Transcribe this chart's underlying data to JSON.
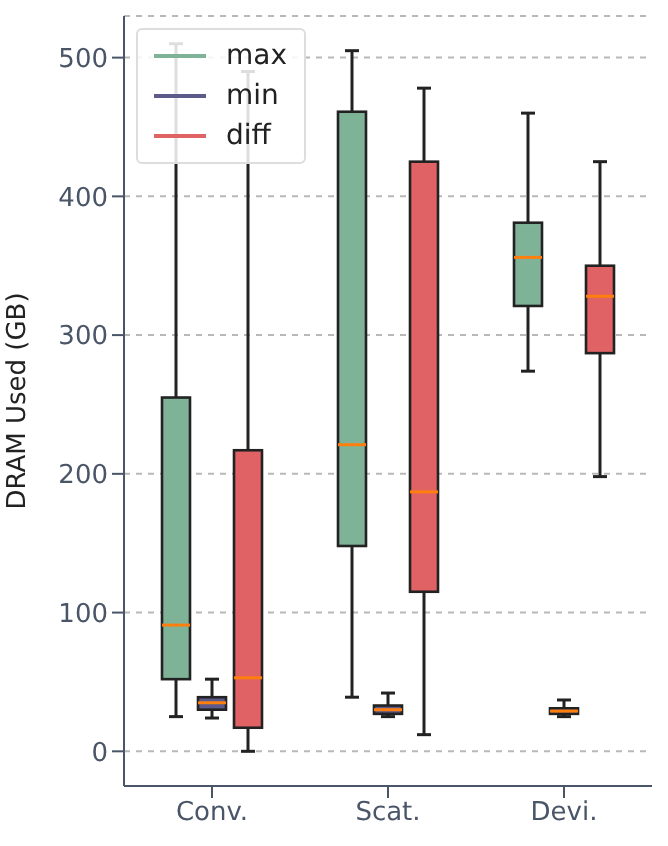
{
  "chart_data": {
    "type": "box",
    "ylabel": "DRAM Used (GB)",
    "categories": [
      "Conv.",
      "Scat.",
      "Devi."
    ],
    "ylim": [
      -25,
      530
    ],
    "yticks": [
      0,
      100,
      200,
      300,
      400,
      500
    ],
    "grid": "y",
    "legend": "top left",
    "series": [
      {
        "name": "max",
        "color": "#7fb398",
        "boxes": [
          {
            "low": 25,
            "q1": 52,
            "median": 91,
            "q3": 255,
            "high": 510
          },
          {
            "low": 39,
            "q1": 148,
            "median": 221,
            "q3": 461,
            "high": 505
          },
          {
            "low": 274,
            "q1": 321,
            "median": 356,
            "q3": 381,
            "high": 460
          }
        ]
      },
      {
        "name": "min",
        "color": "#5b5a8a",
        "boxes": [
          {
            "low": 24,
            "q1": 30,
            "median": 35,
            "q3": 39,
            "high": 52
          },
          {
            "low": 25,
            "q1": 27,
            "median": 30,
            "q3": 33,
            "high": 42
          },
          {
            "low": 25,
            "q1": 27,
            "median": 29,
            "q3": 31,
            "high": 37
          }
        ]
      },
      {
        "name": "diff",
        "color": "#e06265",
        "boxes": [
          {
            "low": 0,
            "q1": 17,
            "median": 53,
            "q3": 217,
            "high": 490
          },
          {
            "low": 12,
            "q1": 115,
            "median": 187,
            "q3": 425,
            "high": 478
          },
          {
            "low": 198,
            "q1": 287,
            "median": 328,
            "q3": 350,
            "high": 425
          }
        ]
      }
    ]
  }
}
